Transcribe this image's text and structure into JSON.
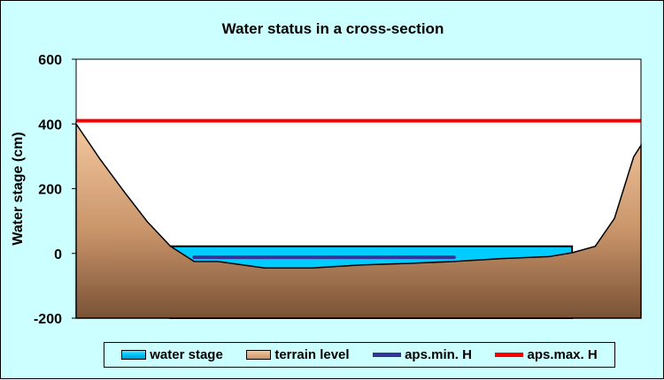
{
  "chart_data": {
    "type": "area",
    "title": "Water status in a cross-section",
    "xlabel": "",
    "ylabel": "Water stage (cm)",
    "ylim": [
      -200,
      600
    ],
    "yticks": [
      -200,
      0,
      200,
      400,
      600
    ],
    "y_tick_labels": [
      "-200",
      "0",
      "200",
      "400",
      "600"
    ],
    "x_range": [
      0,
      100
    ],
    "grid": false,
    "legend_position": "bottom",
    "series": [
      {
        "name": "water stage",
        "type": "area",
        "color": "#00ccff",
        "value": 22,
        "x_extent": [
          16.7,
          87.8
        ]
      },
      {
        "name": "terrain level",
        "type": "area",
        "color": "#c9946a",
        "points": [
          [
            0,
            400
          ],
          [
            4.2,
            292
          ],
          [
            8.4,
            193
          ],
          [
            12.6,
            98
          ],
          [
            16.7,
            22
          ],
          [
            20.9,
            -25
          ],
          [
            25.1,
            -25
          ],
          [
            33.4,
            -45
          ],
          [
            41.8,
            -45
          ],
          [
            50.2,
            -36
          ],
          [
            58.5,
            -31
          ],
          [
            66.9,
            -25
          ],
          [
            75.3,
            -16
          ],
          [
            83.7,
            -10
          ],
          [
            87.8,
            2
          ],
          [
            91.9,
            22
          ],
          [
            95.3,
            108
          ],
          [
            98.7,
            298
          ],
          [
            100,
            334
          ]
        ]
      },
      {
        "name": "aps.min. H",
        "type": "line",
        "color": "#333399",
        "value": -12,
        "x_extent": [
          20.9,
          66.9
        ]
      },
      {
        "name": "aps.max. H",
        "type": "line",
        "color": "#ff0000",
        "value": 410,
        "x_extent": [
          0,
          100
        ]
      }
    ]
  }
}
